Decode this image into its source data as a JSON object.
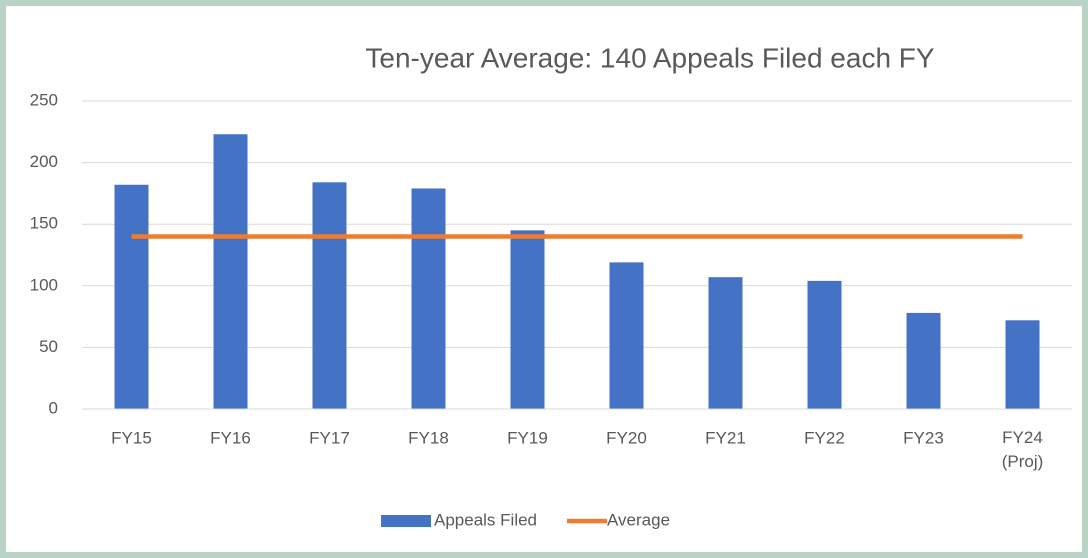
{
  "chart_data": {
    "type": "bar_line",
    "title": "Ten-year Average: 140 Appeals Filed each FY",
    "categories": [
      "FY15",
      "FY16",
      "FY17",
      "FY18",
      "FY19",
      "FY20",
      "FY21",
      "FY22",
      "FY23",
      "FY24 (Proj)"
    ],
    "series": [
      {
        "name": "Appeals Filed",
        "type": "bar",
        "color": "#4472c4",
        "values": [
          182,
          223,
          184,
          179,
          145,
          119,
          107,
          104,
          78,
          72
        ]
      },
      {
        "name": "Average",
        "type": "line",
        "color": "#ed7d31",
        "values": [
          140,
          140,
          140,
          140,
          140,
          140,
          140,
          140,
          140,
          140
        ]
      }
    ],
    "ylim": [
      0,
      250
    ],
    "yticks": [
      0,
      50,
      100,
      150,
      200,
      250
    ],
    "grid": true,
    "legend": "bottom"
  }
}
